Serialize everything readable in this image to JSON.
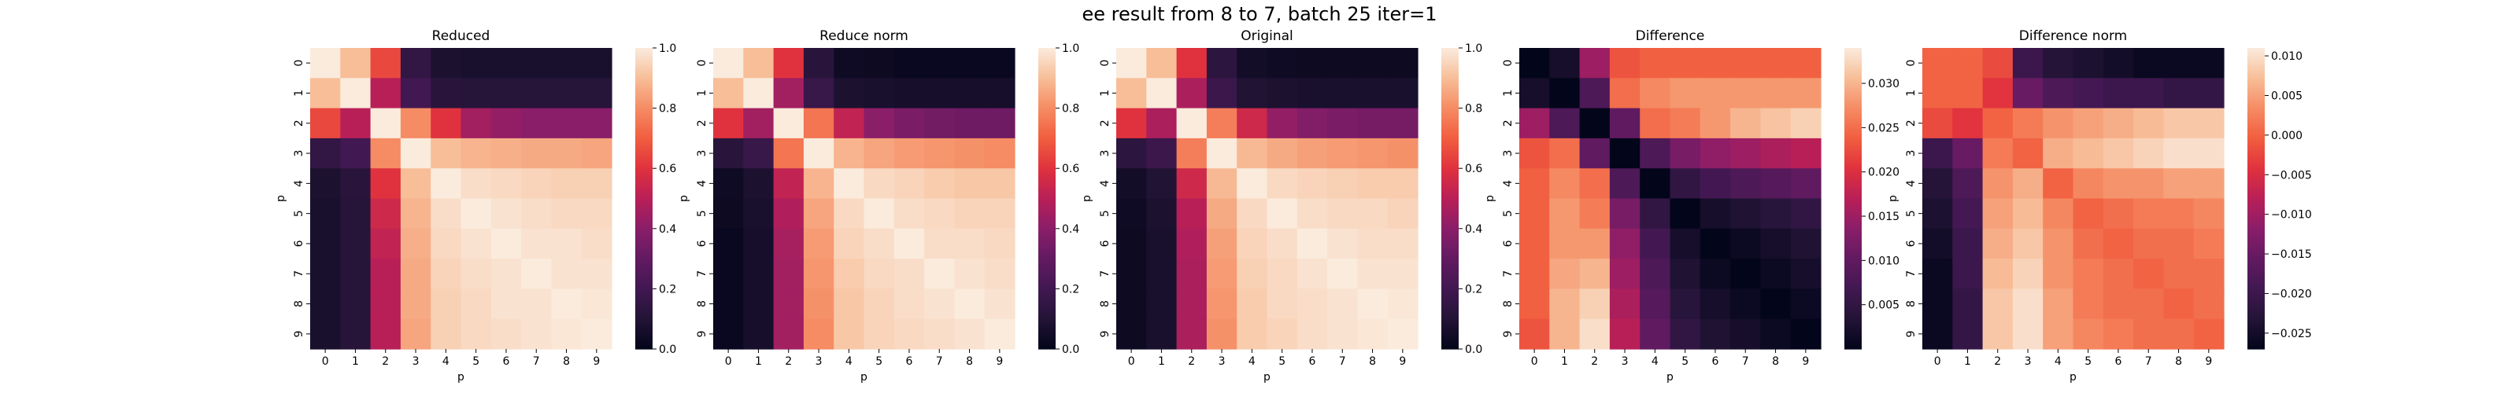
{
  "suptitle": "ee result from 8 to 7, batch 25 iter=1",
  "chart_data": [
    {
      "type": "heatmap",
      "title": "Reduced",
      "xlabel": "p",
      "ylabel": "p",
      "x_categories": [
        "0",
        "1",
        "2",
        "3",
        "4",
        "5",
        "6",
        "7",
        "8",
        "9"
      ],
      "y_categories": [
        "0",
        "1",
        "2",
        "3",
        "4",
        "5",
        "6",
        "7",
        "8",
        "9"
      ],
      "colorbar": {
        "vmin": 0.0,
        "vmax": 1.0,
        "ticks": [
          "0.0",
          "0.2",
          "0.4",
          "0.6",
          "0.8",
          "1.0"
        ]
      },
      "values": [
        [
          1.0,
          0.9,
          0.65,
          0.15,
          0.08,
          0.07,
          0.07,
          0.07,
          0.07,
          0.07
        ],
        [
          0.9,
          1.0,
          0.5,
          0.2,
          0.12,
          0.11,
          0.11,
          0.11,
          0.11,
          0.11
        ],
        [
          0.65,
          0.5,
          1.0,
          0.8,
          0.6,
          0.45,
          0.42,
          0.4,
          0.4,
          0.4
        ],
        [
          0.15,
          0.2,
          0.8,
          1.0,
          0.9,
          0.88,
          0.87,
          0.86,
          0.86,
          0.85
        ],
        [
          0.08,
          0.12,
          0.6,
          0.9,
          1.0,
          0.97,
          0.96,
          0.95,
          0.94,
          0.94
        ],
        [
          0.07,
          0.11,
          0.55,
          0.88,
          0.97,
          1.0,
          0.98,
          0.97,
          0.96,
          0.96
        ],
        [
          0.07,
          0.11,
          0.52,
          0.87,
          0.96,
          0.98,
          1.0,
          0.98,
          0.98,
          0.97
        ],
        [
          0.07,
          0.11,
          0.5,
          0.86,
          0.95,
          0.97,
          0.98,
          1.0,
          0.98,
          0.98
        ],
        [
          0.07,
          0.11,
          0.5,
          0.86,
          0.94,
          0.96,
          0.98,
          0.98,
          1.0,
          0.99
        ],
        [
          0.07,
          0.11,
          0.5,
          0.85,
          0.94,
          0.96,
          0.97,
          0.98,
          0.99,
          1.0
        ]
      ]
    },
    {
      "type": "heatmap",
      "title": "Reduce norm",
      "xlabel": "p",
      "ylabel": "p",
      "x_categories": [
        "0",
        "1",
        "2",
        "3",
        "4",
        "5",
        "6",
        "7",
        "8",
        "9"
      ],
      "y_categories": [
        "0",
        "1",
        "2",
        "3",
        "4",
        "5",
        "6",
        "7",
        "8",
        "9"
      ],
      "colorbar": {
        "vmin": 0.0,
        "vmax": 1.0,
        "ticks": [
          "0.0",
          "0.2",
          "0.4",
          "0.6",
          "0.8",
          "1.0"
        ]
      },
      "values": [
        [
          1.0,
          0.9,
          0.6,
          0.12,
          0.04,
          0.03,
          0.02,
          0.02,
          0.02,
          0.02
        ],
        [
          0.9,
          1.0,
          0.45,
          0.17,
          0.08,
          0.07,
          0.06,
          0.06,
          0.06,
          0.06
        ],
        [
          0.6,
          0.45,
          1.0,
          0.75,
          0.52,
          0.4,
          0.36,
          0.34,
          0.33,
          0.33
        ],
        [
          0.12,
          0.17,
          0.75,
          1.0,
          0.88,
          0.85,
          0.83,
          0.82,
          0.81,
          0.8
        ],
        [
          0.04,
          0.08,
          0.52,
          0.88,
          1.0,
          0.96,
          0.95,
          0.93,
          0.92,
          0.92
        ],
        [
          0.03,
          0.07,
          0.48,
          0.85,
          0.96,
          1.0,
          0.97,
          0.96,
          0.95,
          0.95
        ],
        [
          0.02,
          0.06,
          0.46,
          0.83,
          0.95,
          0.97,
          1.0,
          0.97,
          0.97,
          0.96
        ],
        [
          0.02,
          0.06,
          0.45,
          0.82,
          0.93,
          0.96,
          0.97,
          1.0,
          0.98,
          0.97
        ],
        [
          0.02,
          0.06,
          0.45,
          0.81,
          0.92,
          0.95,
          0.97,
          0.98,
          1.0,
          0.98
        ],
        [
          0.02,
          0.06,
          0.45,
          0.8,
          0.92,
          0.95,
          0.96,
          0.97,
          0.98,
          1.0
        ]
      ]
    },
    {
      "type": "heatmap",
      "title": "Original",
      "xlabel": "p",
      "ylabel": "p",
      "x_categories": [
        "0",
        "1",
        "2",
        "3",
        "4",
        "5",
        "6",
        "7",
        "8",
        "9"
      ],
      "y_categories": [
        "0",
        "1",
        "2",
        "3",
        "4",
        "5",
        "6",
        "7",
        "8",
        "9"
      ],
      "colorbar": {
        "vmin": 0.0,
        "vmax": 1.0,
        "ticks": [
          "0.0",
          "0.2",
          "0.4",
          "0.6",
          "0.8",
          "1.0"
        ]
      },
      "values": [
        [
          1.0,
          0.9,
          0.6,
          0.13,
          0.05,
          0.04,
          0.03,
          0.03,
          0.03,
          0.03
        ],
        [
          0.9,
          1.0,
          0.47,
          0.18,
          0.09,
          0.08,
          0.07,
          0.07,
          0.07,
          0.07
        ],
        [
          0.6,
          0.47,
          1.0,
          0.77,
          0.55,
          0.42,
          0.38,
          0.36,
          0.35,
          0.35
        ],
        [
          0.13,
          0.18,
          0.77,
          1.0,
          0.89,
          0.86,
          0.84,
          0.83,
          0.82,
          0.81
        ],
        [
          0.05,
          0.09,
          0.55,
          0.89,
          1.0,
          0.96,
          0.95,
          0.94,
          0.93,
          0.93
        ],
        [
          0.04,
          0.08,
          0.5,
          0.86,
          0.96,
          1.0,
          0.97,
          0.96,
          0.96,
          0.95
        ],
        [
          0.03,
          0.07,
          0.48,
          0.84,
          0.95,
          0.97,
          1.0,
          0.98,
          0.97,
          0.97
        ],
        [
          0.03,
          0.07,
          0.47,
          0.83,
          0.94,
          0.96,
          0.98,
          1.0,
          0.98,
          0.98
        ],
        [
          0.03,
          0.07,
          0.47,
          0.82,
          0.93,
          0.96,
          0.97,
          0.98,
          1.0,
          0.99
        ],
        [
          0.03,
          0.07,
          0.47,
          0.81,
          0.93,
          0.95,
          0.97,
          0.98,
          0.99,
          1.0
        ]
      ]
    },
    {
      "type": "heatmap",
      "title": "Difference",
      "xlabel": "p",
      "ylabel": "p",
      "x_categories": [
        "0",
        "1",
        "2",
        "3",
        "4",
        "5",
        "6",
        "7",
        "8",
        "9"
      ],
      "y_categories": [
        "0",
        "1",
        "2",
        "3",
        "4",
        "5",
        "6",
        "7",
        "8",
        "9"
      ],
      "colorbar": {
        "vmin": 0.0,
        "vmax": 0.034,
        "ticks": [
          "0.005",
          "0.010",
          "0.015",
          "0.020",
          "0.025",
          "0.030"
        ]
      },
      "values": [
        [
          0.0,
          0.002,
          0.015,
          0.023,
          0.024,
          0.024,
          0.024,
          0.024,
          0.024,
          0.024
        ],
        [
          0.002,
          0.0,
          0.008,
          0.025,
          0.027,
          0.028,
          0.028,
          0.028,
          0.028,
          0.028
        ],
        [
          0.015,
          0.008,
          0.0,
          0.01,
          0.025,
          0.026,
          0.028,
          0.03,
          0.031,
          0.032
        ],
        [
          0.023,
          0.025,
          0.01,
          0.0,
          0.008,
          0.012,
          0.014,
          0.015,
          0.016,
          0.017
        ],
        [
          0.024,
          0.027,
          0.025,
          0.008,
          0.0,
          0.005,
          0.007,
          0.008,
          0.009,
          0.01
        ],
        [
          0.024,
          0.028,
          0.026,
          0.012,
          0.005,
          0.0,
          0.002,
          0.003,
          0.004,
          0.005
        ],
        [
          0.024,
          0.028,
          0.028,
          0.014,
          0.007,
          0.002,
          0.0,
          0.001,
          0.002,
          0.003
        ],
        [
          0.024,
          0.029,
          0.03,
          0.015,
          0.008,
          0.003,
          0.001,
          0.0,
          0.001,
          0.002
        ],
        [
          0.024,
          0.03,
          0.032,
          0.016,
          0.009,
          0.004,
          0.002,
          0.001,
          0.0,
          0.001
        ],
        [
          0.023,
          0.03,
          0.033,
          0.017,
          0.01,
          0.005,
          0.003,
          0.002,
          0.001,
          0.0
        ]
      ]
    },
    {
      "type": "heatmap",
      "title": "Difference norm",
      "xlabel": "p",
      "ylabel": "p",
      "x_categories": [
        "0",
        "1",
        "2",
        "3",
        "4",
        "5",
        "6",
        "7",
        "8",
        "9"
      ],
      "y_categories": [
        "0",
        "1",
        "2",
        "3",
        "4",
        "5",
        "6",
        "7",
        "8",
        "9"
      ],
      "colorbar": {
        "vmin": -0.027,
        "vmax": 0.011,
        "ticks": [
          "−0.025",
          "−0.020",
          "−0.015",
          "−0.010",
          "−0.005",
          "0.000",
          "0.005",
          "0.010"
        ]
      },
      "values": [
        [
          0.0,
          0.0,
          -0.002,
          -0.02,
          -0.023,
          -0.024,
          -0.025,
          -0.026,
          -0.026,
          -0.026
        ],
        [
          0.0,
          0.0,
          -0.004,
          -0.015,
          -0.018,
          -0.019,
          -0.02,
          -0.02,
          -0.021,
          -0.021
        ],
        [
          -0.002,
          -0.004,
          0.0,
          0.002,
          0.004,
          0.005,
          0.006,
          0.007,
          0.008,
          0.008
        ],
        [
          -0.02,
          -0.015,
          0.002,
          0.0,
          0.006,
          0.007,
          0.008,
          0.009,
          0.01,
          0.01
        ],
        [
          -0.023,
          -0.018,
          0.004,
          0.006,
          0.0,
          0.003,
          0.004,
          0.004,
          0.005,
          0.005
        ],
        [
          -0.024,
          -0.019,
          0.005,
          0.007,
          0.003,
          0.0,
          0.001,
          0.002,
          0.002,
          0.003
        ],
        [
          -0.025,
          -0.02,
          0.006,
          0.008,
          0.004,
          0.001,
          0.0,
          0.001,
          0.001,
          0.002
        ],
        [
          -0.026,
          -0.02,
          0.007,
          0.009,
          0.004,
          0.002,
          0.001,
          0.0,
          0.001,
          0.001
        ],
        [
          -0.026,
          -0.021,
          0.008,
          0.01,
          0.005,
          0.002,
          0.001,
          0.001,
          0.0,
          0.001
        ],
        [
          -0.026,
          -0.021,
          0.008,
          0.01,
          0.005,
          0.003,
          0.002,
          0.001,
          0.001,
          0.0
        ]
      ]
    }
  ]
}
